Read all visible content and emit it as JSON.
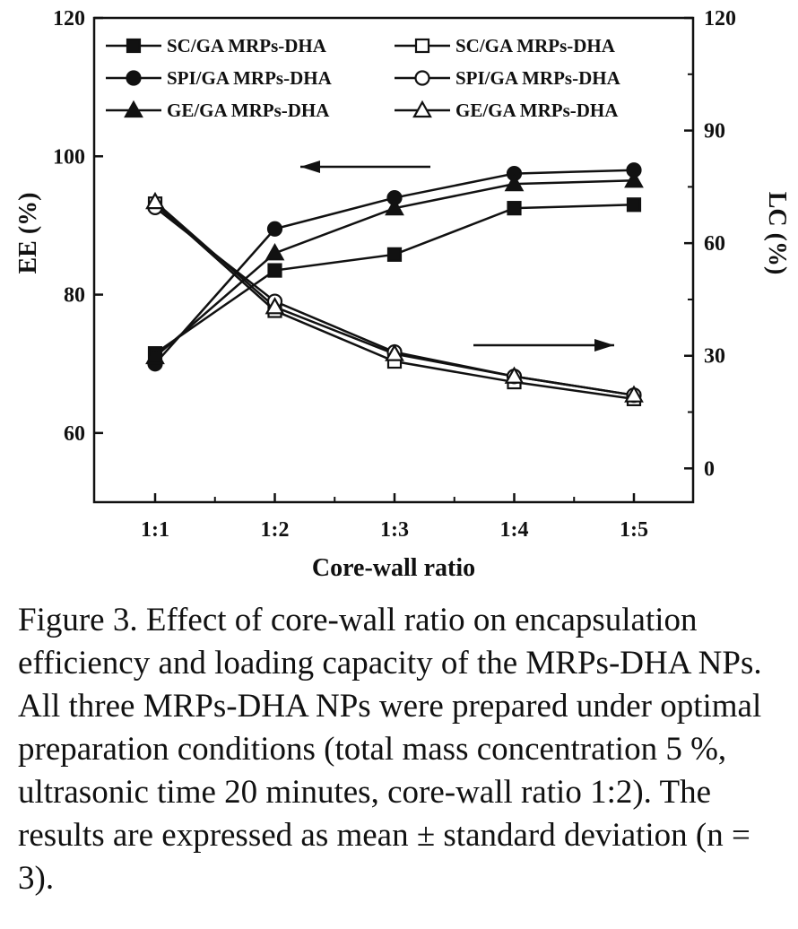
{
  "chart_data": {
    "type": "line",
    "xlabel": "Core-wall ratio",
    "ylabel_left": "EE (%)",
    "ylabel_right": "LC (%)",
    "categories": [
      "1:1",
      "1:2",
      "1:3",
      "1:4",
      "1:5"
    ],
    "ylim_left": [
      50,
      120
    ],
    "yticks_left": [
      60,
      80,
      100,
      120
    ],
    "ylim_right": [
      -9,
      120
    ],
    "yticks_right": [
      0,
      30,
      60,
      90,
      120
    ],
    "legend_position": "top",
    "series": [
      {
        "name": "SC/GA MRPs-DHA",
        "axis": "left",
        "marker": "square-filled",
        "values": [
          71.5,
          83.5,
          85.8,
          92.5,
          93.0
        ]
      },
      {
        "name": "SC/GA MRPs-DHA",
        "axis": "right",
        "marker": "square-open",
        "values": [
          70.5,
          42.0,
          28.5,
          23.0,
          18.5
        ]
      },
      {
        "name": "SPI/GA MRPs-DHA",
        "axis": "left",
        "marker": "circle-filled",
        "values": [
          70.0,
          89.5,
          94.0,
          97.5,
          98.0
        ]
      },
      {
        "name": "SPI/GA MRPs-DHA",
        "axis": "right",
        "marker": "circle-open",
        "values": [
          69.5,
          44.5,
          31.0,
          24.5,
          19.5
        ]
      },
      {
        "name": "GE/GA MRPs-DHA",
        "axis": "left",
        "marker": "triangle-filled",
        "values": [
          71.0,
          86.0,
          92.5,
          96.0,
          96.5
        ]
      },
      {
        "name": "GE/GA MRPs-DHA",
        "axis": "right",
        "marker": "triangle-open",
        "values": [
          71.0,
          43.0,
          30.5,
          24.5,
          19.5
        ]
      }
    ],
    "annotations": [
      {
        "type": "arrow",
        "direction": "left",
        "meaning": "series refer to EE (left axis)"
      },
      {
        "type": "arrow",
        "direction": "right",
        "meaning": "series refer to LC (right axis)"
      }
    ]
  },
  "caption": "Figure 3. Effect of core-wall ratio on encapsulation efficiency and loading capacity of the MRPs-DHA NPs. All three MRPs-DHA NPs were prepared under optimal preparation conditions (total mass concentration 5 %, ultrasonic time 20 minutes, core-wall ratio 1:2). The results are expressed as mean ± standard deviation (n = 3)."
}
